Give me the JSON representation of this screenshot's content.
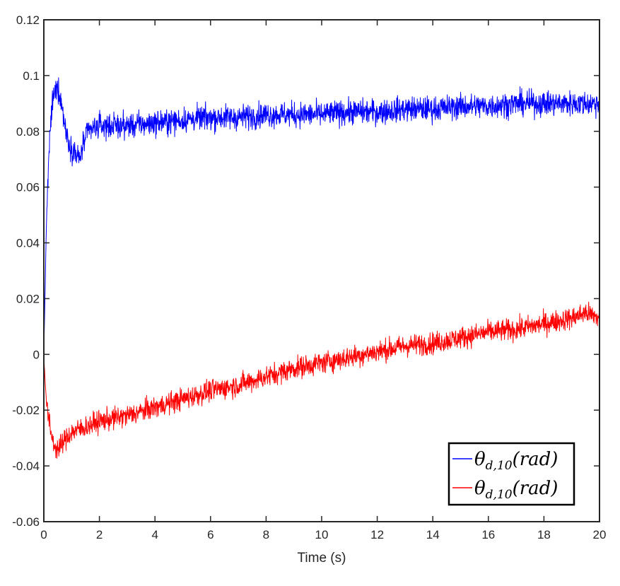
{
  "chart_data": {
    "type": "line",
    "title": "",
    "xlabel": "Time (s)",
    "ylabel": "",
    "xlim": [
      0,
      20
    ],
    "ylim": [
      -0.06,
      0.12
    ],
    "xticks": [
      0,
      2,
      4,
      6,
      8,
      10,
      12,
      14,
      16,
      18,
      20
    ],
    "xtick_labels": [
      "0",
      "2",
      "4",
      "6",
      "8",
      "10",
      "12",
      "14",
      "16",
      "18",
      "20"
    ],
    "yticks": [
      -0.06,
      -0.04,
      -0.02,
      0,
      0.02,
      0.04,
      0.06,
      0.08,
      0.1,
      0.12
    ],
    "ytick_labels": [
      "-0.06",
      "-0.04",
      "-0.02",
      "0",
      "0.02",
      "0.04",
      "0.06",
      "0.08",
      "0.1",
      "0.12"
    ],
    "grid": false,
    "legend_position": "bottom-right",
    "series": [
      {
        "name": "θd,10(rad)",
        "legend_main": "θ",
        "legend_sub": "d,10",
        "legend_tail": "(rad)",
        "color": "#0000ff",
        "noise": 0.004,
        "x": [
          0,
          0.05,
          0.1,
          0.2,
          0.3,
          0.4,
          0.5,
          0.6,
          0.7,
          0.8,
          0.9,
          1.0,
          1.1,
          1.2,
          1.3,
          1.4,
          1.6,
          2,
          3,
          4,
          5,
          6,
          7,
          8,
          9,
          10,
          11,
          12,
          13,
          14,
          15,
          16,
          17,
          18,
          19,
          20
        ],
        "y": [
          0,
          0.025,
          0.05,
          0.075,
          0.09,
          0.094,
          0.096,
          0.092,
          0.086,
          0.08,
          0.076,
          0.074,
          0.073,
          0.071,
          0.07,
          0.075,
          0.08,
          0.082,
          0.082,
          0.083,
          0.084,
          0.085,
          0.085,
          0.086,
          0.086,
          0.086,
          0.087,
          0.087,
          0.088,
          0.088,
          0.089,
          0.089,
          0.09,
          0.09,
          0.09,
          0.09
        ]
      },
      {
        "name": "θd,10(rad)",
        "legend_main": "θ",
        "legend_sub": "d,10",
        "legend_tail": "(rad)",
        "color": "#ff0000",
        "noise": 0.0035,
        "x": [
          0,
          0.05,
          0.1,
          0.2,
          0.3,
          0.4,
          0.5,
          0.6,
          0.8,
          1.0,
          1.5,
          2,
          3,
          4,
          5,
          6,
          7,
          8,
          9,
          10,
          11,
          12,
          13,
          14,
          15,
          16,
          17,
          18,
          19,
          19.5,
          20
        ],
        "y": [
          0,
          -0.01,
          -0.018,
          -0.025,
          -0.03,
          -0.033,
          -0.034,
          -0.033,
          -0.03,
          -0.028,
          -0.026,
          -0.024,
          -0.022,
          -0.019,
          -0.016,
          -0.013,
          -0.011,
          -0.008,
          -0.005,
          -0.003,
          -0.001,
          0.001,
          0.003,
          0.004,
          0.006,
          0.008,
          0.009,
          0.011,
          0.013,
          0.015,
          0.013
        ]
      }
    ]
  }
}
